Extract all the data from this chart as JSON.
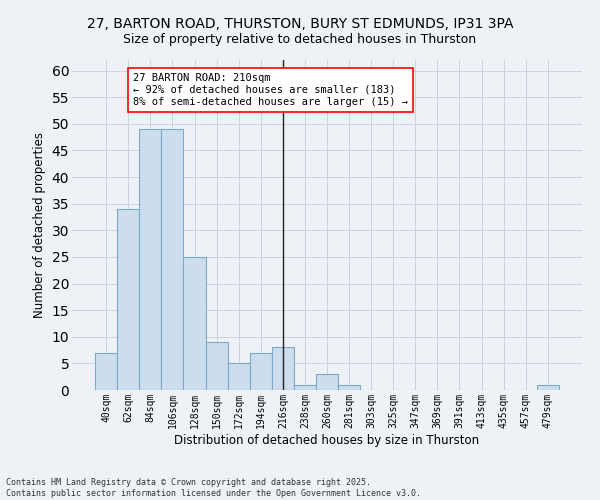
{
  "title_line1": "27, BARTON ROAD, THURSTON, BURY ST EDMUNDS, IP31 3PA",
  "title_line2": "Size of property relative to detached houses in Thurston",
  "xlabel": "Distribution of detached houses by size in Thurston",
  "ylabel": "Number of detached properties",
  "categories": [
    "40sqm",
    "62sqm",
    "84sqm",
    "106sqm",
    "128sqm",
    "150sqm",
    "172sqm",
    "194sqm",
    "216sqm",
    "238sqm",
    "260sqm",
    "281sqm",
    "303sqm",
    "325sqm",
    "347sqm",
    "369sqm",
    "391sqm",
    "413sqm",
    "435sqm",
    "457sqm",
    "479sqm"
  ],
  "values": [
    7,
    34,
    49,
    49,
    25,
    9,
    5,
    7,
    8,
    1,
    3,
    1,
    0,
    0,
    0,
    0,
    0,
    0,
    0,
    0,
    1
  ],
  "bar_color": "#ccdded",
  "bar_edge_color": "#7aaac8",
  "vline_x": 8,
  "vline_color": "#222222",
  "annotation_text": "27 BARTON ROAD: 210sqm\n← 92% of detached houses are smaller (183)\n8% of semi-detached houses are larger (15) →",
  "annotation_box_facecolor": "white",
  "annotation_box_edgecolor": "red",
  "ylim": [
    0,
    62
  ],
  "yticks": [
    0,
    5,
    10,
    15,
    20,
    25,
    30,
    35,
    40,
    45,
    50,
    55,
    60
  ],
  "grid_color": "#c8d4de",
  "bg_color": "#eef2f7",
  "footer": "Contains HM Land Registry data © Crown copyright and database right 2025.\nContains public sector information licensed under the Open Government Licence v3.0.",
  "title_fontsize": 10,
  "subtitle_fontsize": 9,
  "tick_fontsize": 7,
  "label_fontsize": 8.5,
  "annotation_fontsize": 7.5,
  "footer_fontsize": 6
}
